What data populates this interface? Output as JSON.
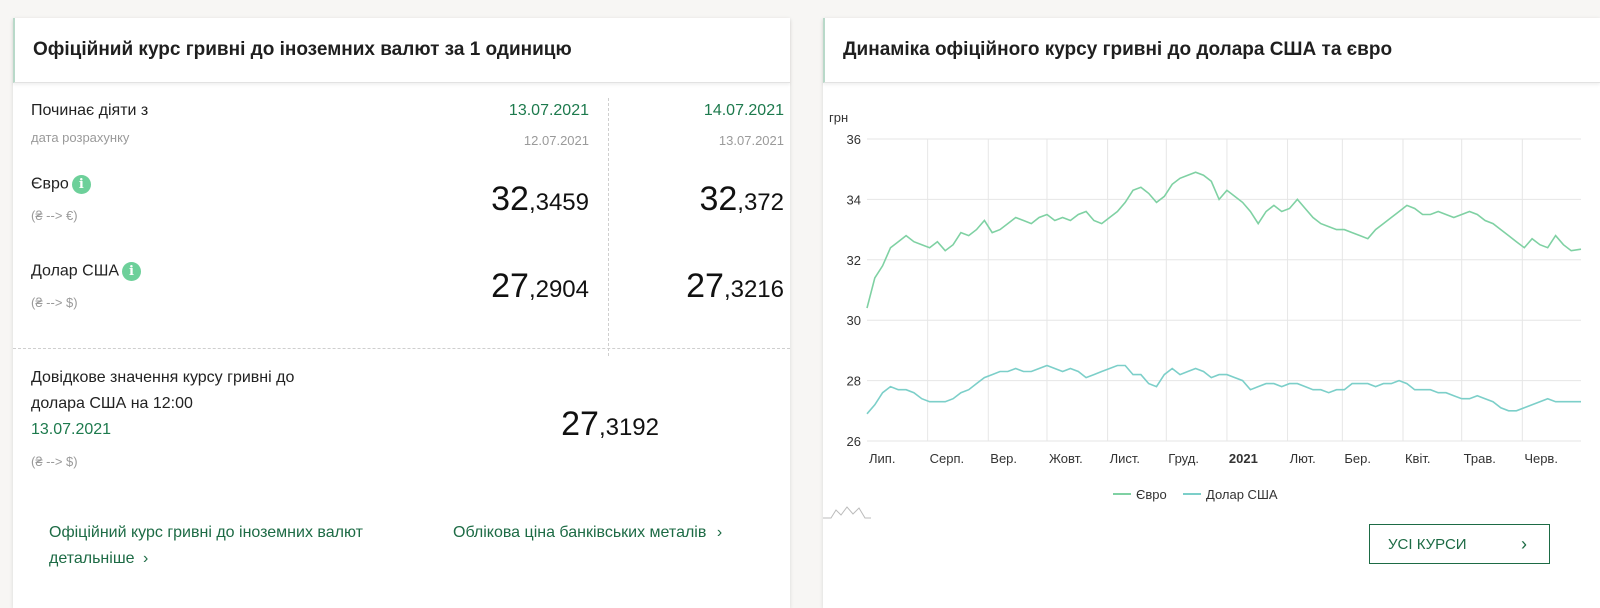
{
  "left_card": {
    "title": "Офіційний курс гривні до іноземних валют за 1 одиницю",
    "start_label": "Починає діяти з",
    "calc_label": "дата розрахунку",
    "columns": [
      {
        "date": "13.07.2021",
        "calc_date": "12.07.2021",
        "eur_int": "32",
        "eur_frac": ",3459",
        "usd_int": "27",
        "usd_frac": ",2904"
      },
      {
        "date": "14.07.2021",
        "calc_date": "13.07.2021",
        "eur_int": "32",
        "eur_frac": ",372",
        "usd_int": "27",
        "usd_frac": ",3216"
      }
    ],
    "eur": {
      "label": "Євро",
      "pair": "(₴ --> €)"
    },
    "usd": {
      "label": "Долар США",
      "pair": "(₴ --> $)"
    },
    "info_glyph": "i",
    "reference": {
      "label": "Довідкове значення курсу гривні до долара США на 12:00",
      "date": "13.07.2021",
      "pair": "(₴ --> $)",
      "rate_int": "27",
      "rate_frac": ",3192"
    },
    "links": {
      "official_detail": "Офіційний курс гривні до іноземних валют детальніше",
      "metals": "Облікова ціна банківських металів",
      "chevron": "›"
    }
  },
  "right_card": {
    "title": "Динаміка офіційного курсу гривні до долара США та євро",
    "all_rates_button": "УСІ КУРСИ",
    "chevron": "›"
  },
  "chart_data": {
    "type": "line",
    "title": "",
    "ylabel": "грн",
    "ylim": [
      26,
      36
    ],
    "yticks": [
      26,
      28,
      30,
      32,
      34,
      36
    ],
    "xlim": [
      0,
      365
    ],
    "x_tick_labels": [
      {
        "x": 0,
        "label": "Лип."
      },
      {
        "x": 31,
        "label": "Серп."
      },
      {
        "x": 62,
        "label": "Вер."
      },
      {
        "x": 92,
        "label": "Жовт."
      },
      {
        "x": 123,
        "label": "Лист."
      },
      {
        "x": 153,
        "label": "Груд."
      },
      {
        "x": 184,
        "label": "2021",
        "bold": true
      },
      {
        "x": 215,
        "label": "Лют."
      },
      {
        "x": 243,
        "label": "Бер."
      },
      {
        "x": 274,
        "label": "Квіт."
      },
      {
        "x": 304,
        "label": "Трав."
      },
      {
        "x": 335,
        "label": "Черв."
      }
    ],
    "grid": true,
    "legend_position": "bottom-center",
    "series": [
      {
        "name": "Євро",
        "color": "#7fd1a3",
        "x": [
          0,
          4,
          8,
          12,
          16,
          20,
          24,
          28,
          32,
          36,
          40,
          44,
          48,
          52,
          56,
          60,
          64,
          68,
          72,
          76,
          80,
          84,
          88,
          92,
          96,
          100,
          104,
          108,
          112,
          116,
          120,
          124,
          128,
          132,
          136,
          140,
          144,
          148,
          152,
          156,
          160,
          164,
          168,
          172,
          176,
          180,
          184,
          188,
          192,
          196,
          200,
          204,
          208,
          212,
          216,
          220,
          224,
          228,
          232,
          236,
          240,
          244,
          248,
          252,
          256,
          260,
          264,
          268,
          272,
          276,
          280,
          284,
          288,
          292,
          296,
          300,
          304,
          308,
          312,
          316,
          320,
          324,
          328,
          332,
          336,
          340,
          344,
          348,
          352,
          356,
          360,
          365
        ],
        "values": [
          30.4,
          31.4,
          31.8,
          32.4,
          32.6,
          32.8,
          32.6,
          32.5,
          32.4,
          32.6,
          32.3,
          32.5,
          32.9,
          32.8,
          33.0,
          33.3,
          32.9,
          33.0,
          33.2,
          33.4,
          33.3,
          33.2,
          33.4,
          33.5,
          33.3,
          33.4,
          33.3,
          33.5,
          33.6,
          33.3,
          33.2,
          33.4,
          33.6,
          33.9,
          34.3,
          34.4,
          34.2,
          33.9,
          34.1,
          34.5,
          34.7,
          34.8,
          34.9,
          34.8,
          34.6,
          34.0,
          34.3,
          34.1,
          33.9,
          33.6,
          33.2,
          33.6,
          33.8,
          33.6,
          33.7,
          34.0,
          33.7,
          33.4,
          33.2,
          33.1,
          33.0,
          33.0,
          32.9,
          32.8,
          32.7,
          33.0,
          33.2,
          33.4,
          33.6,
          33.8,
          33.7,
          33.5,
          33.5,
          33.6,
          33.5,
          33.4,
          33.5,
          33.6,
          33.5,
          33.3,
          33.2,
          33.0,
          32.8,
          32.6,
          32.4,
          32.7,
          32.5,
          32.4,
          32.8,
          32.5,
          32.3,
          32.35
        ]
      },
      {
        "name": "Долар США",
        "color": "#7ccfc9",
        "x": [
          0,
          4,
          8,
          12,
          16,
          20,
          24,
          28,
          32,
          36,
          40,
          44,
          48,
          52,
          56,
          60,
          64,
          68,
          72,
          76,
          80,
          84,
          88,
          92,
          96,
          100,
          104,
          108,
          112,
          116,
          120,
          124,
          128,
          132,
          136,
          140,
          144,
          148,
          152,
          156,
          160,
          164,
          168,
          172,
          176,
          180,
          184,
          188,
          192,
          196,
          200,
          204,
          208,
          212,
          216,
          220,
          224,
          228,
          232,
          236,
          240,
          244,
          248,
          252,
          256,
          260,
          264,
          268,
          272,
          276,
          280,
          284,
          288,
          292,
          296,
          300,
          304,
          308,
          312,
          316,
          320,
          324,
          328,
          332,
          336,
          340,
          344,
          348,
          352,
          356,
          360,
          365
        ],
        "values": [
          26.9,
          27.2,
          27.6,
          27.8,
          27.7,
          27.7,
          27.6,
          27.4,
          27.3,
          27.3,
          27.3,
          27.4,
          27.6,
          27.7,
          27.9,
          28.1,
          28.2,
          28.3,
          28.3,
          28.4,
          28.3,
          28.3,
          28.4,
          28.5,
          28.4,
          28.3,
          28.4,
          28.3,
          28.1,
          28.2,
          28.3,
          28.4,
          28.5,
          28.5,
          28.2,
          28.2,
          27.9,
          27.8,
          28.2,
          28.4,
          28.2,
          28.3,
          28.4,
          28.3,
          28.1,
          28.2,
          28.2,
          28.1,
          28.0,
          27.7,
          27.8,
          27.9,
          27.9,
          27.8,
          27.9,
          27.9,
          27.8,
          27.7,
          27.7,
          27.6,
          27.7,
          27.7,
          27.9,
          27.9,
          27.9,
          27.8,
          27.9,
          27.9,
          28.0,
          27.9,
          27.7,
          27.7,
          27.7,
          27.6,
          27.6,
          27.5,
          27.4,
          27.4,
          27.5,
          27.4,
          27.3,
          27.1,
          27.0,
          27.0,
          27.1,
          27.2,
          27.3,
          27.4,
          27.3,
          27.3,
          27.3,
          27.3
        ]
      }
    ]
  }
}
